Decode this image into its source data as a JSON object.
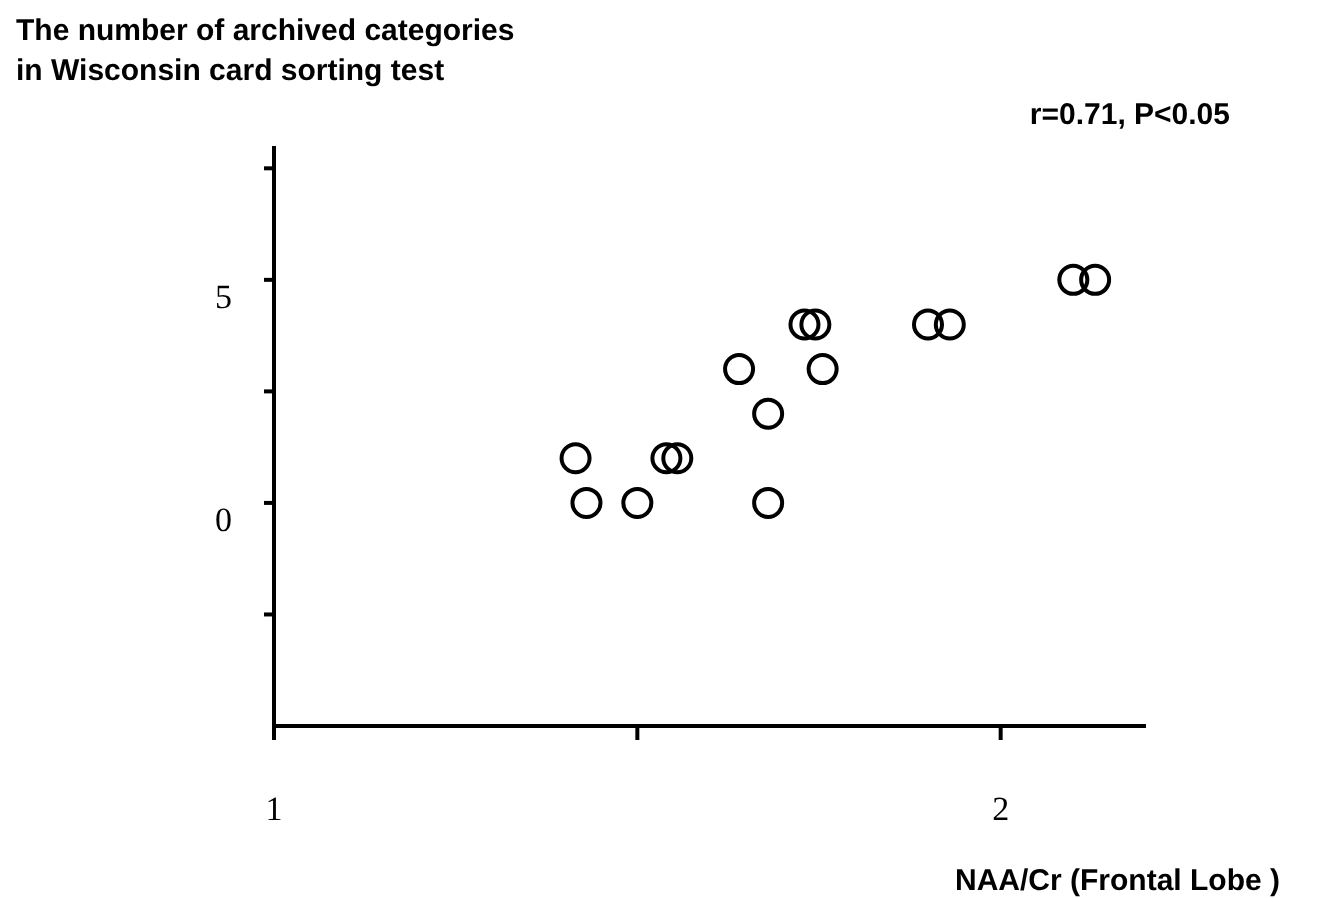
{
  "chart_data": {
    "type": "scatter",
    "ylabel": "The number of archived categories\nin Wisconsin card sorting test",
    "xlabel": "NAA/Cr (Frontal Lobe )",
    "annotations": [
      "r=0.71, P<0.05"
    ],
    "x": [
      1.415,
      1.43,
      1.5,
      1.54,
      1.555,
      1.64,
      1.68,
      1.68,
      1.73,
      1.745,
      1.755,
      1.9,
      1.93,
      2.1,
      2.13
    ],
    "values": [
      1,
      0,
      0,
      1,
      1,
      3,
      2,
      0,
      4,
      4,
      3,
      4,
      4,
      5,
      5
    ],
    "color": "#000000",
    "marker": "circle",
    "xlim": [
      1,
      2.2
    ],
    "xticks": [
      1,
      {
        "value": 1.5,
        "label": null
      },
      2
    ],
    "ylim": [
      -5,
      8
    ],
    "yticks": [
      {
        "value": -2.5,
        "label": null
      },
      0,
      {
        "value": 2.5,
        "label": null
      },
      5,
      {
        "value": 7.5,
        "label": null
      }
    ],
    "grid": false
  }
}
